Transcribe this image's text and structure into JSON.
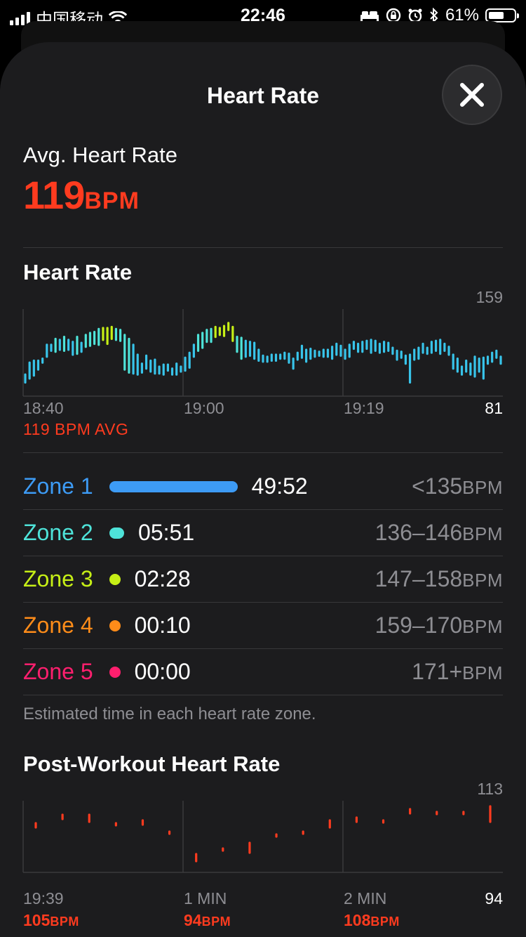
{
  "status_bar": {
    "carrier": "中国移动",
    "time": "22:46",
    "battery": "61%",
    "battery_level": 0.61
  },
  "sheet": {
    "title": "Heart Rate"
  },
  "summary": {
    "label": "Avg. Heart Rate",
    "value": "119",
    "unit": "BPM"
  },
  "heart_rate_section": {
    "title": "Heart Rate",
    "y_max_label": "159",
    "y_min_label": "81",
    "x_labels": [
      "18:40",
      "19:00",
      "19:19"
    ],
    "avg_note": "119 BPM AVG"
  },
  "zones": [
    {
      "name": "Zone 1",
      "time": "49:52",
      "range": "<135",
      "unit": "BPM",
      "color": "#3d9bf5",
      "fraction": 1.0
    },
    {
      "name": "Zone 2",
      "time": "05:51",
      "range": "136–146",
      "unit": "BPM",
      "color": "#4ee3d9",
      "fraction": 0.117
    },
    {
      "name": "Zone 3",
      "time": "02:28",
      "range": "147–158",
      "unit": "BPM",
      "color": "#c6ef16",
      "fraction": 0.049
    },
    {
      "name": "Zone 4",
      "time": "00:10",
      "range": "159–170",
      "unit": "BPM",
      "color": "#ff8c19",
      "fraction": 0.003
    },
    {
      "name": "Zone 5",
      "time": "00:00",
      "range": "171+",
      "unit": "BPM",
      "color": "#ff1f6e",
      "fraction": 0
    }
  ],
  "zone_note": "Estimated time in each heart rate zone.",
  "post_workout": {
    "title": "Post-Workout Heart Rate",
    "y_max_label": "113",
    "y_min_label": "94",
    "x_labels": [
      "19:39",
      "1 MIN",
      "2 MIN"
    ],
    "values": [
      {
        "value": "105",
        "unit": "BPM"
      },
      {
        "value": "94",
        "unit": "BPM"
      },
      {
        "value": "108",
        "unit": "BPM"
      }
    ]
  },
  "chart_data": [
    {
      "type": "bar",
      "title": "Heart Rate",
      "x_ticks": [
        "18:40",
        "19:00",
        "19:19"
      ],
      "ylim": [
        81,
        159
      ],
      "avg": 119,
      "series": [
        {
          "ranges": [
            [
              92,
              100
            ],
            [
              96,
              112
            ],
            [
              99,
              114
            ],
            [
              105,
              114
            ],
            [
              112,
              116
            ],
            [
              118,
              130
            ],
            [
              124,
              130
            ],
            [
              123,
              136
            ],
            [
              125,
              135
            ],
            [
              124,
              138
            ],
            [
              125,
              135
            ],
            [
              120,
              133
            ],
            [
              121,
              138
            ],
            [
              123,
              132
            ],
            [
              128,
              140
            ],
            [
              129,
              142
            ],
            [
              131,
              143
            ],
            [
              130,
              146
            ],
            [
              135,
              147
            ],
            [
              131,
              147
            ],
            [
              136,
              148
            ],
            [
              135,
              146
            ],
            [
              134,
              145
            ],
            [
              105,
              140
            ],
            [
              102,
              136
            ],
            [
              101,
              130
            ],
            [
              100,
              120
            ],
            [
              102,
              111
            ],
            [
              106,
              119
            ],
            [
              103,
              114
            ],
            [
              101,
              115
            ],
            [
              101,
              108
            ],
            [
              100,
              110
            ],
            [
              104,
              110
            ],
            [
              100,
              106
            ],
            [
              100,
              111
            ],
            [
              103,
              108
            ],
            [
              104,
              117
            ],
            [
              107,
              122
            ],
            [
              118,
              130
            ],
            [
              124,
              140
            ],
            [
              127,
              142
            ],
            [
              133,
              145
            ],
            [
              133,
              146
            ],
            [
              138,
              148
            ],
            [
              140,
              147
            ],
            [
              139,
              149
            ],
            [
              145,
              152
            ],
            [
              134,
              148
            ],
            [
              123,
              138
            ],
            [
              116,
              137
            ],
            [
              118,
              134
            ],
            [
              119,
              133
            ],
            [
              116,
              132
            ],
            [
              114,
              125
            ],
            [
              113,
              119
            ],
            [
              113,
              118
            ],
            [
              114,
              120
            ],
            [
              114,
              120
            ],
            [
              116,
              120
            ],
            [
              116,
              122
            ],
            [
              112,
              121
            ],
            [
              106,
              116
            ],
            [
              115,
              122
            ],
            [
              117,
              129
            ],
            [
              113,
              125
            ],
            [
              116,
              126
            ],
            [
              118,
              124
            ],
            [
              119,
              123
            ],
            [
              118,
              125
            ],
            [
              118,
              125
            ],
            [
              116,
              128
            ],
            [
              120,
              131
            ],
            [
              119,
              129
            ],
            [
              116,
              125
            ],
            [
              118,
              130
            ],
            [
              126,
              133
            ],
            [
              123,
              131
            ],
            [
              123,
              133
            ],
            [
              126,
              134
            ],
            [
              122,
              135
            ],
            [
              124,
              134
            ],
            [
              122,
              131
            ],
            [
              123,
              133
            ],
            [
              124,
              132
            ],
            [
              121,
              127
            ],
            [
              115,
              124
            ],
            [
              117,
              123
            ],
            [
              111,
              119
            ],
            [
              92,
              120
            ],
            [
              115,
              125
            ],
            [
              116,
              127
            ],
            [
              122,
              131
            ],
            [
              121,
              127
            ],
            [
              122,
              133
            ],
            [
              124,
              134
            ],
            [
              121,
              135
            ],
            [
              124,
              131
            ],
            [
              120,
              128
            ],
            [
              106,
              120
            ],
            [
              103,
              116
            ],
            [
              100,
              108
            ],
            [
              103,
              114
            ],
            [
              100,
              111
            ],
            [
              98,
              118
            ],
            [
              103,
              116
            ],
            [
              96,
              117
            ],
            [
              111,
              118
            ],
            [
              113,
              122
            ],
            [
              117,
              124
            ],
            [
              111,
              118
            ]
          ]
        }
      ]
    },
    {
      "type": "scatter",
      "title": "Post-Workout Heart Rate",
      "x_ticks": [
        "19:39",
        "1 MIN",
        "2 MIN"
      ],
      "ylim": [
        94,
        113
      ],
      "series": [
        {
          "ranges": [
            [
              106,
              107
            ],
            [
              109,
              110
            ],
            [
              108,
              110
            ],
            [
              107,
              107
            ],
            [
              107,
              108
            ],
            [
              104,
              104
            ],
            [
              94,
              96
            ],
            [
              98,
              98
            ],
            [
              97,
              100
            ],
            [
              103,
              103
            ],
            [
              104,
              104
            ],
            [
              106,
              108
            ],
            [
              108,
              109
            ],
            [
              108,
              108
            ],
            [
              111,
              112
            ],
            [
              111,
              111
            ],
            [
              111,
              111
            ],
            [
              108,
              113
            ]
          ]
        }
      ]
    }
  ]
}
